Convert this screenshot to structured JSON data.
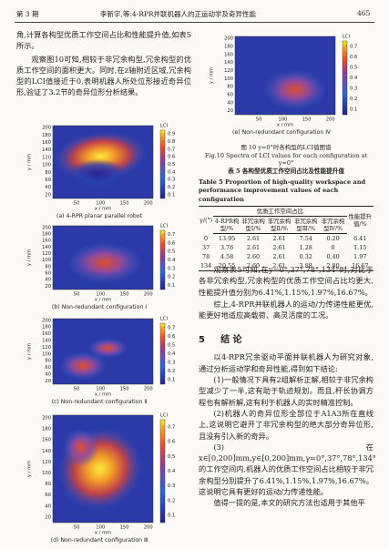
{
  "header": {
    "issue": "第 3 期",
    "running_title": "李新宇,等:4-RPR并联机器人的正运动学及奇异性能",
    "page": "465"
  },
  "left_text": [
    "角,计算各构型优质工作空间占比和性能提升值,如表5所示。",
    "观察图10可知,相较于非冗余构型,冗余构型的优质工作空间的面积更大。同时,在z轴附近区域,冗余构型的LCI值接近于0,表明机器人所处位形接近奇异位形,验证了3.2节的奇异位形分析结果。"
  ],
  "figures": [
    {
      "caption": "(a) 4-RPR planar parallel robot",
      "xlabel": "x / mm",
      "ylabel": "y / mm",
      "cbar_label": "LCI",
      "xlim": [
        0,
        210
      ],
      "ylim": [
        10,
        205
      ],
      "xticks": [
        50,
        100,
        150,
        200
      ],
      "yticks": [
        20,
        40,
        60,
        80,
        100,
        120,
        140,
        160,
        180,
        200
      ],
      "clim": [
        0.05,
        0.95
      ],
      "cticks": [
        0.1,
        0.2,
        0.3,
        0.4,
        0.5,
        0.6,
        0.7,
        0.8,
        0.9
      ]
    },
    {
      "caption": "(b) Non-redundant configuration Ⅰ",
      "xlabel": "x / mm",
      "ylabel": "y / mm",
      "cbar_label": "LCI",
      "xlim": [
        0,
        210
      ],
      "ylim": [
        10,
        205
      ],
      "xticks": [
        50,
        100,
        150,
        200
      ],
      "yticks": [
        20,
        40,
        60,
        80,
        100,
        120,
        140,
        160,
        180,
        200
      ],
      "clim": [
        0.05,
        0.75
      ],
      "cticks": [
        0.1,
        0.2,
        0.3,
        0.4,
        0.5,
        0.6,
        0.7
      ]
    },
    {
      "caption": "(c) Non-redundant configuration Ⅱ",
      "xlabel": "x / mm",
      "ylabel": "y / mm",
      "cbar_label": "LCI",
      "xlim": [
        0,
        210
      ],
      "ylim": [
        10,
        205
      ],
      "xticks": [
        50,
        100,
        150,
        200
      ],
      "yticks": [
        20,
        40,
        60,
        80,
        100,
        120,
        140,
        160,
        180,
        200
      ],
      "clim": [
        0.05,
        0.75
      ],
      "cticks": [
        0.1,
        0.2,
        0.3,
        0.4,
        0.5,
        0.6,
        0.7
      ]
    },
    {
      "caption": "(d) Non-redundant configuration Ⅲ",
      "xlabel": "x / mm",
      "ylabel": "y / mm",
      "cbar_label": "LCI",
      "xlim": [
        0,
        210
      ],
      "ylim": [
        10,
        205
      ],
      "xticks": [
        50,
        100,
        150,
        200
      ],
      "yticks": [
        20,
        40,
        60,
        80,
        100,
        120,
        140,
        160,
        180,
        200
      ],
      "clim": [
        0.05,
        0.75
      ],
      "cticks": [
        0.1,
        0.2,
        0.3,
        0.4,
        0.5,
        0.6,
        0.7
      ]
    },
    {
      "caption": "(e) Non-redundant configuration Ⅳ",
      "xlabel": "x / mm",
      "ylabel": "y / mm",
      "cbar_label": "LCI",
      "xlim": [
        0,
        210
      ],
      "ylim": [
        10,
        205
      ],
      "xticks": [
        50,
        100,
        150,
        200
      ],
      "yticks": [
        20,
        40,
        60,
        80,
        100,
        120,
        140,
        160,
        180,
        200
      ],
      "clim": [
        0.05,
        0.75
      ],
      "cticks": [
        0.1,
        0.2,
        0.3,
        0.4,
        0.5,
        0.6,
        0.7
      ]
    }
  ],
  "figure_caption": {
    "zh": "图 10 y=0°时各构型的LCI值图谱",
    "en": "Fig.10 Spectra of LCI values for each configuration at y=0°"
  },
  "table": {
    "title_zh": "表 5 各构型优质工作空间占比及性能提升值",
    "title_en": "Table 5 Proportion of high-quality workspace and performance improvement values of each configuration",
    "group_header": "优质工作空间占比",
    "headers": [
      "γ/(°)",
      "4-RPR构型/%",
      "非冗余构型Ⅰ/%",
      "非冗余构型Ⅱ/%",
      "非冗余构型Ⅲ/%",
      "非冗余构型Ⅳ/%",
      "性能提升值/%"
    ],
    "rows": [
      [
        "0",
        "13.95",
        "2.61",
        "2.61",
        "7.54",
        "0.20",
        "6.41"
      ],
      [
        "37",
        "3.76",
        "2.61",
        "2.61",
        "1.28",
        "0",
        "1.15"
      ],
      [
        "78",
        "4.58",
        "2.60",
        "2.61",
        "0.32",
        "0.40",
        "1.97"
      ],
      [
        "134",
        "20.55",
        "2.60",
        "2.61",
        "3.88",
        "2.80",
        "16.67"
      ]
    ]
  },
  "right_text": [
    "观察表5可知,在y=0°,37°,78°,134°时,对比于各非冗余构型,冗余构型的优质工作空间占比均更大,性能提升值分别为6.41%,1.15%,1.97%,16.67%。",
    "综上,4-RPR并联机器人的运动/力传递性能更优,能更好地适应高载荷、高灵活度的工况。"
  ],
  "section": {
    "number": "5",
    "title": "结 论"
  },
  "conclusions": [
    "以4-RPR冗余驱动平面并联机器人为研究对象,通过分析运动学和奇异性能,得到如下结论:",
    "(1)一般情况下具有2组解析正解,相较于非冗余构型减少了一半,这有助于轨迹规划。而且,杆长协调方程也有解析解,这有利于机器人的实时精准控制。",
    "(2)机器人的奇异位形全部位于A1A3所在直线上,这说明它避开了非冗余构型的绝大部分奇异位形,且没有引入新的奇异。",
    "(3)在x∈[0,200]mm,y∈[0,200]mm,γ=0°,37°,78°,134°的工作空间内,机器人的优质工作空间占比相较于非冗余构型分别提升了6.41%,1.15%,1.97%,16.67%。这说明它具有更好的运动/力传递性能。",
    "值得一提的是,本文的研究方法也适用于其他平"
  ]
}
